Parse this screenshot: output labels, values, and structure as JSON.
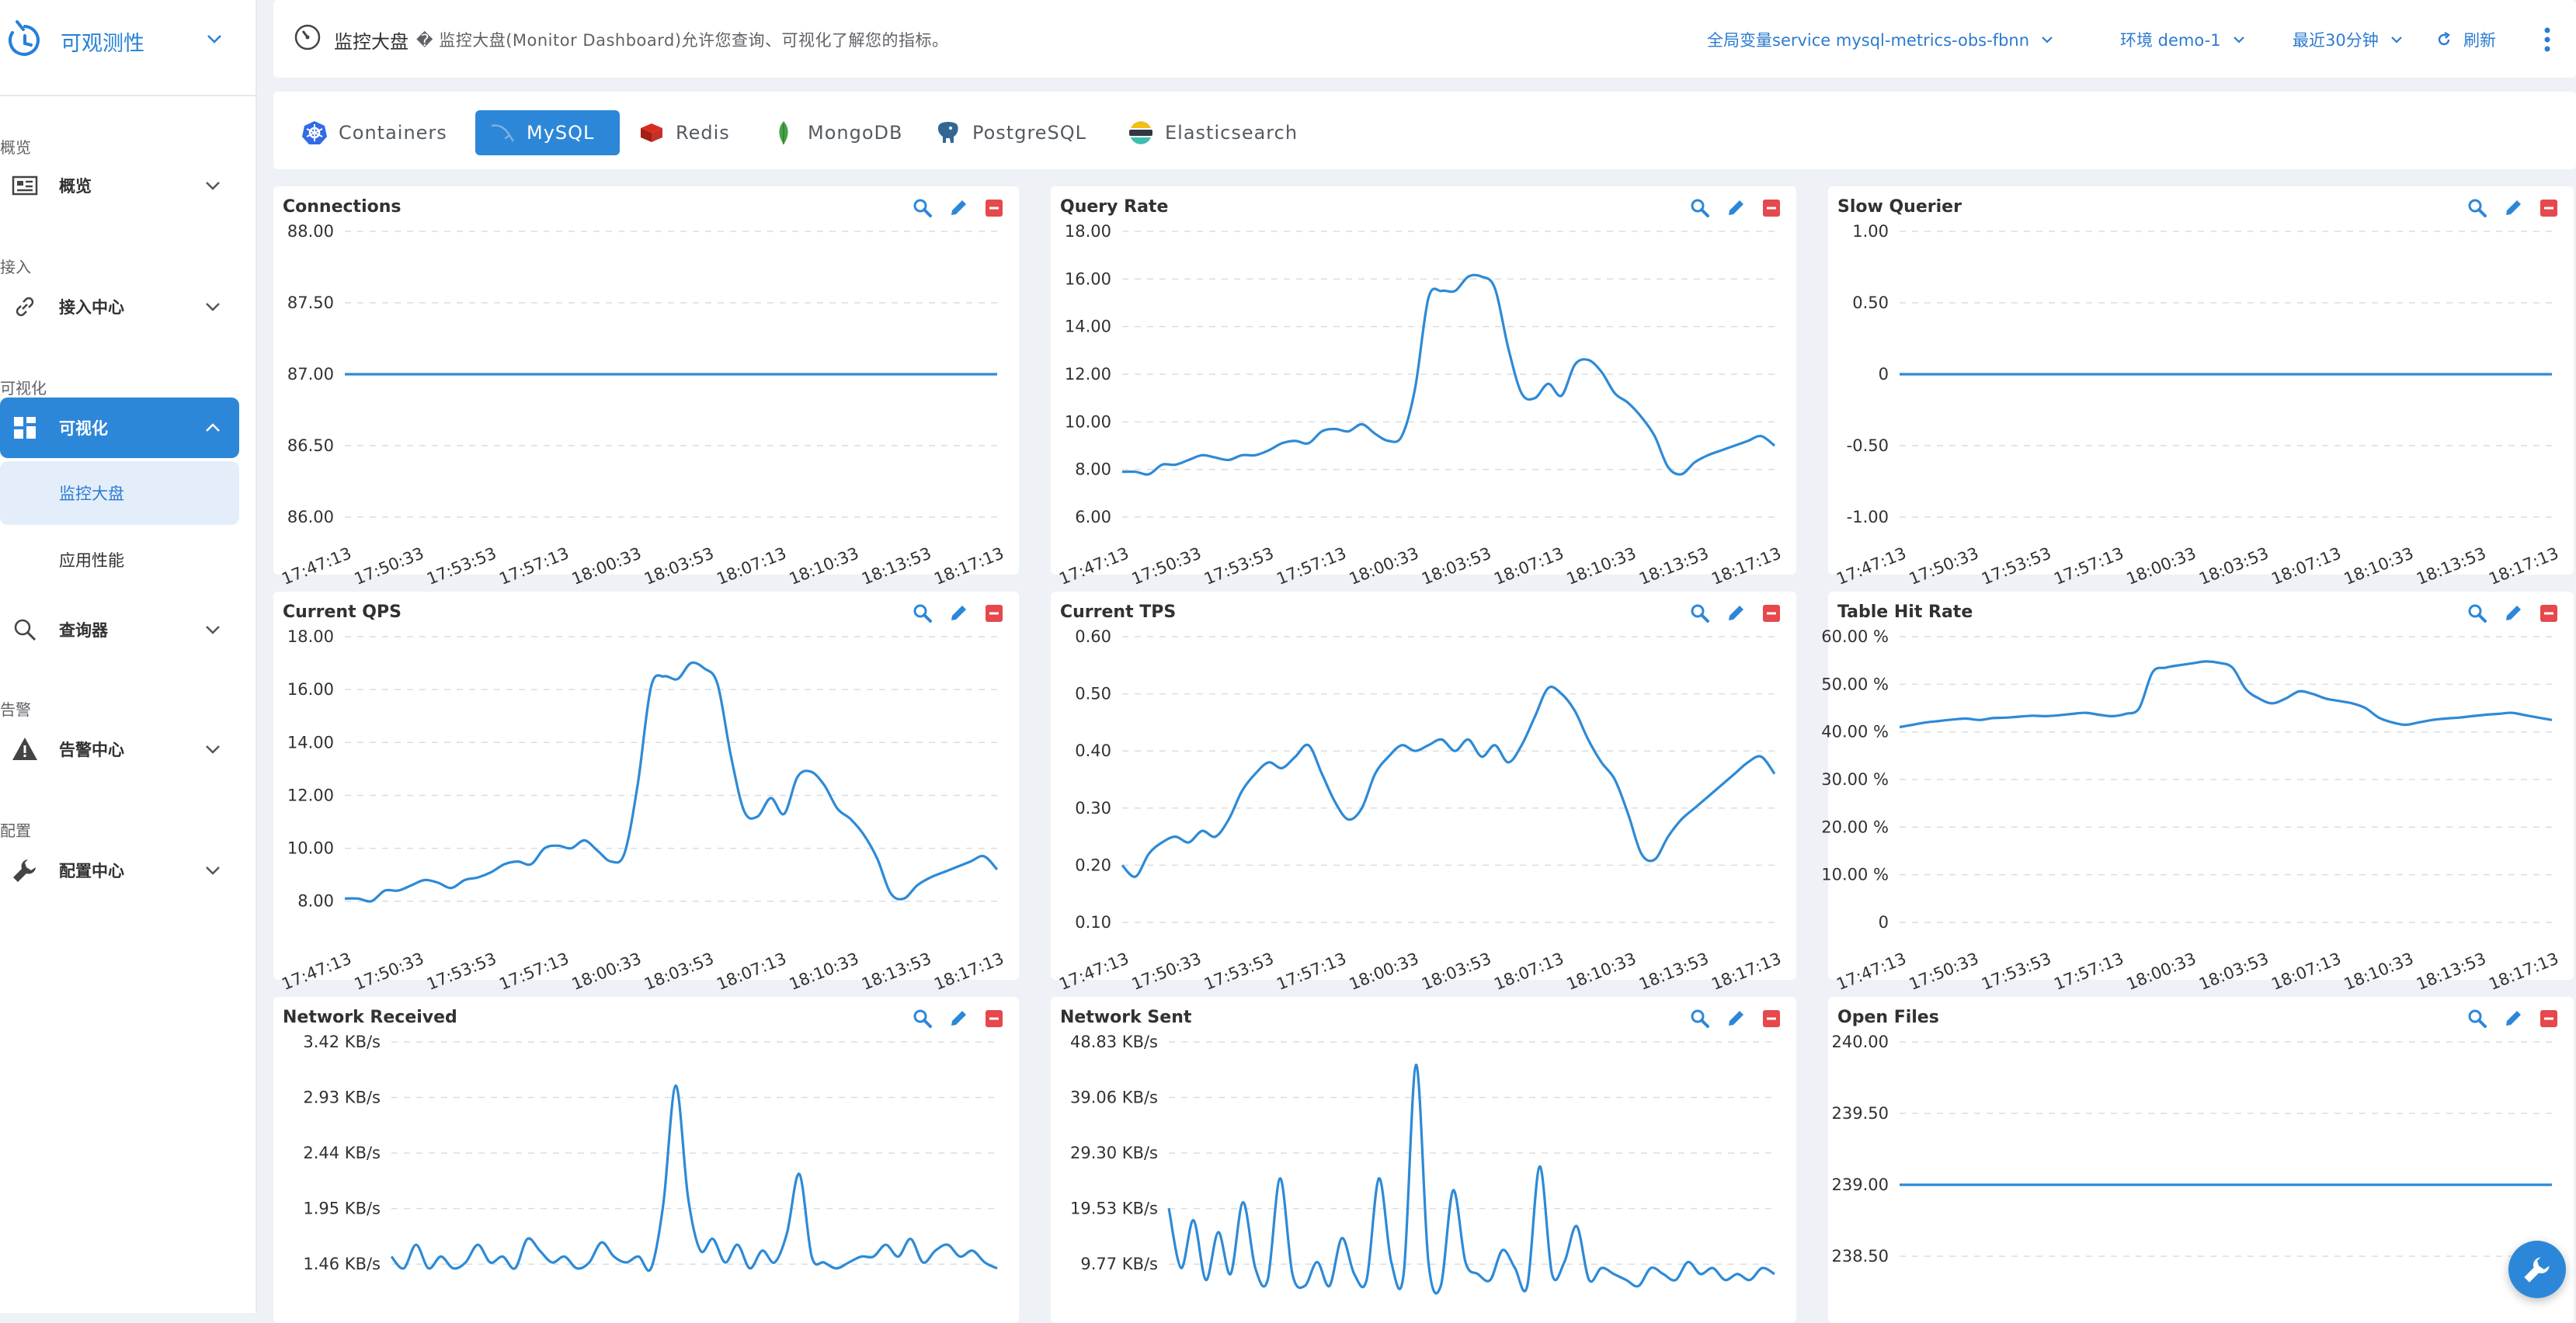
{
  "brand": {
    "title": "可观测性"
  },
  "sidebar": {
    "sections": [
      {
        "label": "概览",
        "item": "概览",
        "icon": "dashboard-icon"
      },
      {
        "label": "接入",
        "item": "接入中心",
        "icon": "link-icon"
      },
      {
        "label": "可视化",
        "item": "可视化",
        "icon": "grid-icon",
        "active": true,
        "children": [
          "监控大盘",
          "应用性能"
        ]
      },
      {
        "label": "",
        "item": "查询器",
        "icon": "search-icon"
      },
      {
        "label": "告警",
        "item": "告警中心",
        "icon": "warning-icon"
      },
      {
        "label": "配置",
        "item": "配置中心",
        "icon": "wrench-icon"
      }
    ]
  },
  "header": {
    "title": "监控大盘",
    "description": "� 监控大盘(Monitor Dashboard)允许您查询、可视化了解您的指标。",
    "global_var": "全局变量service mysql-metrics-obs-fbnn",
    "env": "环境 demo-1",
    "time_range": "最近30分钟",
    "refresh": "刷新"
  },
  "tabs": [
    "Containers",
    "MySQL",
    "Redis",
    "MongoDB",
    "PostgreSQL",
    "Elasticsearch"
  ],
  "active_tab": "MySQL",
  "x_ticks": [
    "17:47:13",
    "17:50:33",
    "17:53:53",
    "17:57:13",
    "18:00:33",
    "18:03:53",
    "18:07:13",
    "18:10:33",
    "18:13:53",
    "18:17:13"
  ],
  "colors": {
    "accent": "#2c87d8",
    "line": "#2d8ad6",
    "danger": "#e5484d"
  },
  "chart_data": [
    {
      "type": "line",
      "title": "Connections",
      "yticks": [
        "88.00",
        "87.50",
        "87.00",
        "86.50",
        "86.00"
      ],
      "ylim": [
        86,
        88
      ],
      "series": [
        {
          "values": [
            87,
            87,
            87,
            87,
            87,
            87,
            87,
            87,
            87,
            87,
            87,
            87,
            87,
            87,
            87,
            87,
            87,
            87,
            87,
            87,
            87,
            87,
            87,
            87,
            87,
            87,
            87,
            87,
            87,
            87,
            87,
            87,
            87,
            87,
            87,
            87,
            87,
            87,
            87,
            87,
            87,
            87,
            87,
            87,
            87,
            87,
            87,
            87,
            87,
            87
          ]
        }
      ]
    },
    {
      "type": "line",
      "title": "Query Rate",
      "yticks": [
        "18.00",
        "16.00",
        "14.00",
        "12.00",
        "10.00",
        "8.00",
        "6.00"
      ],
      "ylim": [
        6,
        18
      ],
      "series": [
        {
          "values": [
            7.9,
            7.9,
            7.8,
            8.2,
            8.2,
            8.4,
            8.6,
            8.5,
            8.4,
            8.6,
            8.6,
            8.8,
            9.1,
            9.2,
            9.1,
            9.6,
            9.7,
            9.6,
            9.9,
            9.5,
            9.2,
            9.4,
            11.4,
            15.2,
            15.5,
            15.5,
            16.1,
            16.1,
            15.6,
            13.1,
            11.2,
            11,
            11.6,
            11.1,
            12.4,
            12.6,
            12.1,
            11.2,
            10.8,
            10.2,
            9.4,
            8.1,
            7.8,
            8.3,
            8.6,
            8.8,
            9,
            9.2,
            9.4,
            9
          ]
        }
      ]
    },
    {
      "type": "line",
      "title": "Slow Querier",
      "yticks": [
        "1.00",
        "0.50",
        "0",
        "-0.50",
        "-1.00"
      ],
      "ylim": [
        -1,
        1
      ],
      "series": [
        {
          "values": [
            0,
            0,
            0,
            0,
            0,
            0,
            0,
            0,
            0,
            0,
            0,
            0,
            0,
            0,
            0,
            0,
            0,
            0,
            0,
            0,
            0,
            0,
            0,
            0,
            0,
            0,
            0,
            0,
            0,
            0,
            0,
            0,
            0,
            0,
            0,
            0,
            0,
            0,
            0,
            0,
            0,
            0,
            0,
            0,
            0,
            0,
            0,
            0,
            0,
            0
          ]
        }
      ]
    },
    {
      "type": "line",
      "title": "Current QPS",
      "yticks": [
        "18.00",
        "16.00",
        "14.00",
        "12.00",
        "10.00",
        "8.00"
      ],
      "ylim": [
        7.2,
        18
      ],
      "series": [
        {
          "values": [
            8.1,
            8.1,
            8.0,
            8.4,
            8.4,
            8.6,
            8.8,
            8.7,
            8.5,
            8.8,
            8.9,
            9.1,
            9.4,
            9.5,
            9.4,
            10,
            10.1,
            10,
            10.3,
            9.9,
            9.5,
            9.8,
            12.4,
            16.1,
            16.5,
            16.4,
            17,
            16.8,
            16.2,
            13.5,
            11.4,
            11.2,
            11.9,
            11.3,
            12.7,
            12.9,
            12.4,
            11.5,
            11.1,
            10.5,
            9.6,
            8.3,
            8.1,
            8.6,
            8.9,
            9.1,
            9.3,
            9.5,
            9.7,
            9.2
          ]
        }
      ]
    },
    {
      "type": "line",
      "title": "Current TPS",
      "yticks": [
        "0.60",
        "0.50",
        "0.40",
        "0.30",
        "0.20",
        "0.10"
      ],
      "ylim": [
        0.1,
        0.6
      ],
      "series": [
        {
          "values": [
            0.2,
            0.18,
            0.22,
            0.24,
            0.25,
            0.24,
            0.26,
            0.25,
            0.28,
            0.33,
            0.36,
            0.38,
            0.37,
            0.39,
            0.41,
            0.36,
            0.31,
            0.28,
            0.3,
            0.36,
            0.39,
            0.41,
            0.4,
            0.41,
            0.42,
            0.4,
            0.42,
            0.39,
            0.41,
            0.38,
            0.41,
            0.46,
            0.51,
            0.5,
            0.47,
            0.42,
            0.38,
            0.35,
            0.29,
            0.22,
            0.21,
            0.25,
            0.28,
            0.3,
            0.32,
            0.34,
            0.36,
            0.38,
            0.39,
            0.36
          ]
        }
      ]
    },
    {
      "type": "line",
      "title": "Table Hit Rate",
      "yticks": [
        "60.00 %",
        "50.00 %",
        "40.00 %",
        "30.00 %",
        "20.00 %",
        "10.00 %",
        "0"
      ],
      "ylim": [
        0,
        60
      ],
      "series": [
        {
          "values": [
            41,
            41.5,
            42,
            42.3,
            42.6,
            42.8,
            42.5,
            42.9,
            43,
            43.2,
            43.4,
            43.3,
            43.5,
            43.8,
            44,
            43.6,
            43.3,
            43.8,
            45,
            52.5,
            53.5,
            54,
            54.4,
            54.8,
            54.5,
            53.5,
            49,
            47,
            46,
            47,
            48.5,
            48,
            47,
            46.5,
            46,
            45,
            43,
            42,
            41.5,
            42,
            42.5,
            42.8,
            43,
            43.3,
            43.6,
            43.8,
            44,
            43.5,
            43,
            42.5
          ]
        }
      ]
    },
    {
      "type": "line",
      "title": "Network Received",
      "yticks": [
        "3.42 KB/s",
        "2.93 KB/s",
        "2.44 KB/s",
        "1.95 KB/s",
        "1.46 KB/s"
      ],
      "ylim": [
        1.3,
        3.42
      ],
      "series": [
        {
          "values": [
            1.6,
            1.5,
            1.7,
            1.5,
            1.6,
            1.5,
            1.55,
            1.7,
            1.55,
            1.6,
            1.5,
            1.75,
            1.65,
            1.55,
            1.6,
            1.5,
            1.55,
            1.72,
            1.6,
            1.55,
            1.6,
            1.5,
            2.05,
            3.05,
            2.1,
            1.65,
            1.75,
            1.55,
            1.7,
            1.5,
            1.65,
            1.55,
            1.8,
            2.3,
            1.6,
            1.55,
            1.5,
            1.55,
            1.6,
            1.6,
            1.7,
            1.6,
            1.75,
            1.55,
            1.65,
            1.7,
            1.6,
            1.65,
            1.55,
            1.5
          ]
        }
      ]
    },
    {
      "type": "line",
      "title": "Network Sent",
      "yticks": [
        "48.83 KB/s",
        "39.06 KB/s",
        "29.30 KB/s",
        "19.53 KB/s",
        "9.77 KB/s"
      ],
      "ylim": [
        7,
        48.83
      ],
      "series": [
        {
          "values": [
            21,
            11,
            19,
            9,
            17,
            10,
            22,
            11,
            9,
            26,
            10,
            8,
            12,
            8,
            16,
            10,
            9,
            26,
            12,
            10,
            45,
            12,
            8,
            24,
            12,
            10,
            9,
            14,
            11,
            8,
            28,
            10,
            12,
            18,
            9,
            11,
            10,
            9,
            8,
            11,
            10,
            9,
            12,
            10,
            11,
            9,
            10,
            9,
            11,
            10
          ]
        }
      ]
    },
    {
      "type": "line",
      "title": "Open Files",
      "yticks": [
        "240.00",
        "239.50",
        "239.00",
        "238.50"
      ],
      "ylim": [
        238.25,
        240
      ],
      "series": [
        {
          "values": [
            239,
            239,
            239,
            239,
            239,
            239,
            239,
            239,
            239,
            239,
            239,
            239,
            239,
            239,
            239,
            239,
            239,
            239,
            239,
            239,
            239,
            239,
            239,
            239,
            239,
            239,
            239,
            239,
            239,
            239,
            239,
            239,
            239,
            239,
            239,
            239,
            239,
            239,
            239,
            239,
            239,
            239,
            239,
            239,
            239,
            239,
            239,
            239,
            239,
            239
          ]
        }
      ]
    }
  ]
}
